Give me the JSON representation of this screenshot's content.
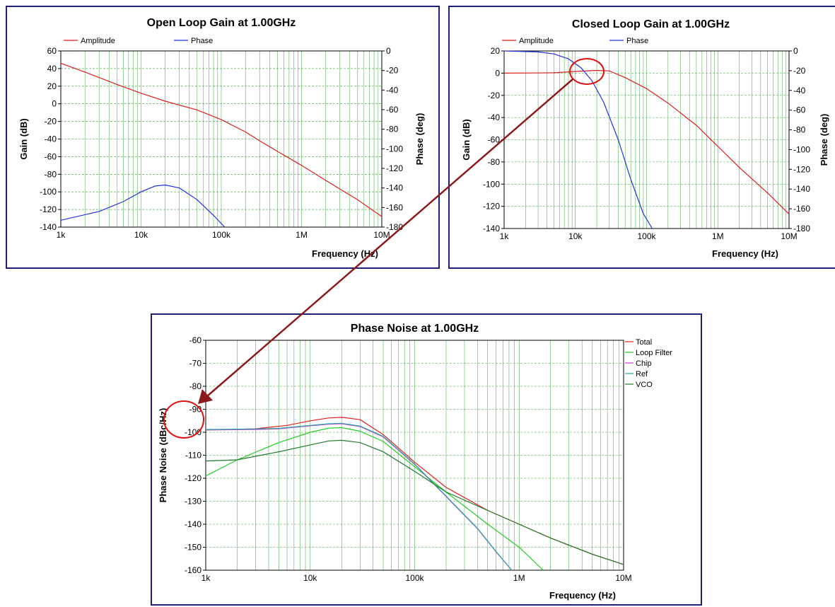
{
  "header_fragment": "",
  "chart_data": [
    {
      "type": "line",
      "title": "Open Loop Gain at 1.00GHz",
      "xlabel": "Frequency (Hz)",
      "ylabel": "Gain (dB)",
      "y2label": "Phase (deg)",
      "xscale": "log",
      "xlim": [
        1000,
        10000000
      ],
      "ylim": [
        -140,
        60
      ],
      "y2lim": [
        -180,
        0
      ],
      "x_ticks": [
        "1k",
        "10k",
        "100k",
        "1M",
        "10M"
      ],
      "y_ticks": [
        "60",
        "40",
        "20",
        "0",
        "-20",
        "-40",
        "-60",
        "-80",
        "-100",
        "-120",
        "-140"
      ],
      "y2_ticks": [
        "0",
        "-20",
        "-40",
        "-60",
        "-80",
        "-100",
        "-120",
        "-140",
        "-160",
        "-180"
      ],
      "grid": true,
      "legend_position": "top",
      "series": [
        {
          "name": "Amplitude",
          "color": "#dd1f1f",
          "axis": "left",
          "x": [
            1000,
            2000,
            5000,
            10000,
            20000,
            50000,
            100000,
            200000,
            300000,
            500000,
            1000000,
            2000000,
            5000000,
            10000000
          ],
          "y": [
            46,
            36,
            22,
            12,
            3,
            -7,
            -18,
            -32,
            -42,
            -54,
            -70,
            -87,
            -109,
            -128
          ]
        },
        {
          "name": "Phase",
          "color": "#2233dd",
          "axis": "right",
          "x": [
            1000,
            3000,
            6000,
            10000,
            15000,
            20000,
            30000,
            50000,
            80000,
            110000
          ],
          "y": [
            -173,
            -164,
            -154,
            -144,
            -138,
            -137,
            -140,
            -152,
            -168,
            -180
          ]
        }
      ]
    },
    {
      "type": "line",
      "title": "Closed Loop Gain at 1.00GHz",
      "xlabel": "Frequency (Hz)",
      "ylabel": "Gain (dB)",
      "y2label": "Phase (deg)",
      "xscale": "log",
      "xlim": [
        1000,
        10000000
      ],
      "ylim": [
        -140,
        20
      ],
      "y2lim": [
        -180,
        0
      ],
      "x_ticks": [
        "1k",
        "10k",
        "100k",
        "1M",
        "10M"
      ],
      "y_ticks": [
        "20",
        "0",
        "-20",
        "-40",
        "-60",
        "-80",
        "-100",
        "-120",
        "-140"
      ],
      "y2_ticks": [
        "0",
        "-20",
        "-40",
        "-60",
        "-80",
        "-100",
        "-120",
        "-140",
        "-160",
        "-180"
      ],
      "grid": true,
      "legend_position": "top",
      "series": [
        {
          "name": "Amplitude",
          "color": "#dd1f1f",
          "axis": "left",
          "x": [
            1000,
            5000,
            10000,
            20000,
            30000,
            50000,
            100000,
            200000,
            500000,
            1000000,
            2000000,
            5000000,
            10000000
          ],
          "y": [
            0,
            0.3,
            1.5,
            2.5,
            2,
            -4,
            -14,
            -27,
            -47,
            -66,
            -85,
            -108,
            -127
          ]
        },
        {
          "name": "Phase",
          "color": "#2233dd",
          "axis": "right",
          "x": [
            1000,
            3000,
            5000,
            8000,
            12000,
            17000,
            25000,
            40000,
            60000,
            90000,
            120000
          ],
          "y": [
            0,
            -1,
            -3,
            -8,
            -17,
            -30,
            -52,
            -90,
            -130,
            -165,
            -180
          ]
        }
      ]
    },
    {
      "type": "line",
      "title": "Phase Noise at 1.00GHz",
      "xlabel": "Frequency (Hz)",
      "ylabel": "Phase Noise (dBc/Hz)",
      "xscale": "log",
      "xlim": [
        1000,
        10000000
      ],
      "ylim": [
        -160,
        -60
      ],
      "x_ticks": [
        "1k",
        "10k",
        "100k",
        "1M",
        "10M"
      ],
      "y_ticks": [
        "-60",
        "-70",
        "-80",
        "-90",
        "-100",
        "-110",
        "-120",
        "-130",
        "-140",
        "-150",
        "-160"
      ],
      "grid": true,
      "legend_position": "right",
      "series": [
        {
          "name": "Total",
          "color": "#dd1f1f",
          "x": [
            1000,
            3000,
            6000,
            10000,
            15000,
            20000,
            30000,
            50000,
            100000,
            200000,
            500000,
            1000000,
            2000000,
            5000000,
            10000000
          ],
          "y": [
            -99,
            -98.5,
            -97,
            -95,
            -93.8,
            -93.5,
            -94.5,
            -101,
            -113,
            -124,
            -134,
            -140,
            -146,
            -153,
            -157.5
          ]
        },
        {
          "name": "Loop Filter",
          "color": "#22cc22",
          "x": [
            1000,
            2000,
            5000,
            10000,
            15000,
            20000,
            30000,
            50000,
            100000,
            200000,
            500000,
            1000000,
            1700000
          ],
          "y": [
            -119,
            -112,
            -104.5,
            -100,
            -98.2,
            -98,
            -99.5,
            -104,
            -115,
            -126,
            -140,
            -150,
            -160
          ]
        },
        {
          "name": "Chip",
          "color": "#d040d0",
          "x": [
            1000,
            3000,
            5000,
            10000,
            15000,
            20000,
            30000,
            50000,
            100000,
            200000,
            400000,
            600000,
            850000
          ],
          "y": [
            -99,
            -98.8,
            -98.5,
            -97.2,
            -96.5,
            -96.3,
            -97.5,
            -102,
            -114,
            -128,
            -142,
            -152,
            -160
          ]
        },
        {
          "name": "Ref",
          "color": "#2aa6a6",
          "x": [
            1000,
            3000,
            5000,
            10000,
            15000,
            20000,
            30000,
            50000,
            100000,
            200000,
            400000,
            600000,
            850000
          ],
          "y": [
            -98.8,
            -98.6,
            -98.3,
            -97,
            -96.3,
            -96.1,
            -97.3,
            -101.8,
            -113.8,
            -127.8,
            -141.8,
            -151.8,
            -160
          ]
        },
        {
          "name": "VCO",
          "color": "#1f7a2a",
          "x": [
            1000,
            2000,
            5000,
            10000,
            15000,
            20000,
            30000,
            50000,
            100000,
            200000,
            500000,
            1000000,
            2000000,
            5000000,
            10000000
          ],
          "y": [
            -112.5,
            -112,
            -108.5,
            -105.5,
            -103.8,
            -103.5,
            -104.5,
            -108.5,
            -117,
            -126,
            -134,
            -140,
            -146,
            -153,
            -157.5
          ]
        }
      ]
    }
  ]
}
